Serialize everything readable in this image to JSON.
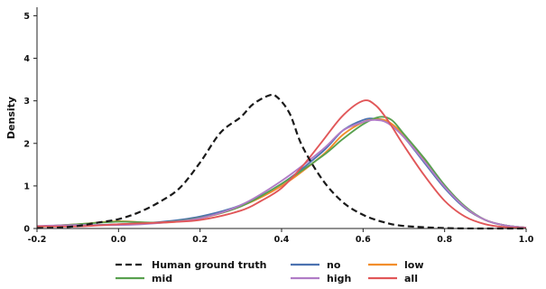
{
  "chart_data": {
    "type": "line",
    "ylabel": "Density",
    "xlim": [
      -0.2,
      1.0
    ],
    "ylim": [
      0,
      5.2
    ],
    "x_ticks": [
      "-0.2",
      "0.0",
      "0.2",
      "0.4",
      "0.6",
      "0.8",
      "1.0"
    ],
    "y_ticks": [
      "0",
      "1",
      "2",
      "3",
      "4",
      "5"
    ],
    "grid": false,
    "legend_position": "bottom",
    "series": [
      {
        "name": "Human ground truth",
        "color": "#1a1a1a",
        "dashed": true,
        "points": [
          [
            -0.2,
            0.01
          ],
          [
            -0.15,
            0.02
          ],
          [
            -0.1,
            0.06
          ],
          [
            -0.05,
            0.14
          ],
          [
            0.0,
            0.22
          ],
          [
            0.05,
            0.38
          ],
          [
            0.1,
            0.62
          ],
          [
            0.15,
            0.95
          ],
          [
            0.2,
            1.55
          ],
          [
            0.25,
            2.25
          ],
          [
            0.3,
            2.62
          ],
          [
            0.33,
            2.92
          ],
          [
            0.37,
            3.13
          ],
          [
            0.39,
            3.08
          ],
          [
            0.42,
            2.7
          ],
          [
            0.45,
            1.95
          ],
          [
            0.5,
            1.15
          ],
          [
            0.55,
            0.62
          ],
          [
            0.6,
            0.32
          ],
          [
            0.65,
            0.15
          ],
          [
            0.7,
            0.06
          ],
          [
            0.8,
            0.01
          ],
          [
            0.9,
            0.0
          ],
          [
            1.0,
            0.0
          ]
        ]
      },
      {
        "name": "no",
        "color": "#4c72b0",
        "dashed": false,
        "points": [
          [
            -0.2,
            0.05
          ],
          [
            -0.1,
            0.07
          ],
          [
            0.0,
            0.1
          ],
          [
            0.1,
            0.15
          ],
          [
            0.2,
            0.28
          ],
          [
            0.3,
            0.55
          ],
          [
            0.4,
            1.05
          ],
          [
            0.5,
            1.8
          ],
          [
            0.55,
            2.3
          ],
          [
            0.6,
            2.55
          ],
          [
            0.63,
            2.58
          ],
          [
            0.66,
            2.5
          ],
          [
            0.7,
            2.15
          ],
          [
            0.75,
            1.55
          ],
          [
            0.8,
            0.95
          ],
          [
            0.85,
            0.48
          ],
          [
            0.9,
            0.2
          ],
          [
            0.95,
            0.07
          ],
          [
            1.0,
            0.02
          ]
        ]
      },
      {
        "name": "low",
        "color": "#f28e2b",
        "dashed": false,
        "points": [
          [
            -0.2,
            0.04
          ],
          [
            -0.1,
            0.1
          ],
          [
            0.0,
            0.17
          ],
          [
            0.1,
            0.13
          ],
          [
            0.2,
            0.24
          ],
          [
            0.3,
            0.52
          ],
          [
            0.4,
            1.0
          ],
          [
            0.5,
            1.72
          ],
          [
            0.55,
            2.2
          ],
          [
            0.6,
            2.5
          ],
          [
            0.63,
            2.56
          ],
          [
            0.66,
            2.52
          ],
          [
            0.7,
            2.2
          ],
          [
            0.75,
            1.62
          ],
          [
            0.8,
            1.0
          ],
          [
            0.85,
            0.5
          ],
          [
            0.9,
            0.2
          ],
          [
            0.95,
            0.07
          ],
          [
            1.0,
            0.02
          ]
        ]
      },
      {
        "name": "mid",
        "color": "#59a14f",
        "dashed": false,
        "points": [
          [
            -0.2,
            0.04
          ],
          [
            -0.1,
            0.1
          ],
          [
            0.0,
            0.16
          ],
          [
            0.1,
            0.14
          ],
          [
            0.2,
            0.25
          ],
          [
            0.3,
            0.52
          ],
          [
            0.4,
            1.05
          ],
          [
            0.5,
            1.7
          ],
          [
            0.55,
            2.1
          ],
          [
            0.6,
            2.45
          ],
          [
            0.64,
            2.62
          ],
          [
            0.67,
            2.55
          ],
          [
            0.7,
            2.22
          ],
          [
            0.75,
            1.65
          ],
          [
            0.8,
            1.02
          ],
          [
            0.85,
            0.52
          ],
          [
            0.9,
            0.2
          ],
          [
            0.95,
            0.07
          ],
          [
            1.0,
            0.02
          ]
        ]
      },
      {
        "name": "high",
        "color": "#b07cc6",
        "dashed": false,
        "points": [
          [
            -0.2,
            0.06
          ],
          [
            -0.1,
            0.08
          ],
          [
            0.0,
            0.08
          ],
          [
            0.1,
            0.13
          ],
          [
            0.2,
            0.24
          ],
          [
            0.3,
            0.55
          ],
          [
            0.4,
            1.12
          ],
          [
            0.5,
            1.85
          ],
          [
            0.55,
            2.3
          ],
          [
            0.6,
            2.5
          ],
          [
            0.63,
            2.55
          ],
          [
            0.66,
            2.48
          ],
          [
            0.7,
            2.15
          ],
          [
            0.75,
            1.58
          ],
          [
            0.8,
            0.98
          ],
          [
            0.85,
            0.5
          ],
          [
            0.9,
            0.2
          ],
          [
            0.95,
            0.07
          ],
          [
            1.0,
            0.02
          ]
        ]
      },
      {
        "name": "all",
        "color": "#e15759",
        "dashed": false,
        "points": [
          [
            -0.2,
            0.05
          ],
          [
            -0.1,
            0.05
          ],
          [
            0.0,
            0.1
          ],
          [
            0.1,
            0.14
          ],
          [
            0.2,
            0.2
          ],
          [
            0.3,
            0.42
          ],
          [
            0.35,
            0.65
          ],
          [
            0.4,
            0.95
          ],
          [
            0.45,
            1.45
          ],
          [
            0.5,
            2.05
          ],
          [
            0.55,
            2.65
          ],
          [
            0.6,
            3.0
          ],
          [
            0.63,
            2.9
          ],
          [
            0.66,
            2.55
          ],
          [
            0.7,
            1.95
          ],
          [
            0.75,
            1.25
          ],
          [
            0.8,
            0.65
          ],
          [
            0.85,
            0.28
          ],
          [
            0.9,
            0.1
          ],
          [
            0.95,
            0.03
          ],
          [
            1.0,
            0.01
          ]
        ]
      }
    ]
  }
}
